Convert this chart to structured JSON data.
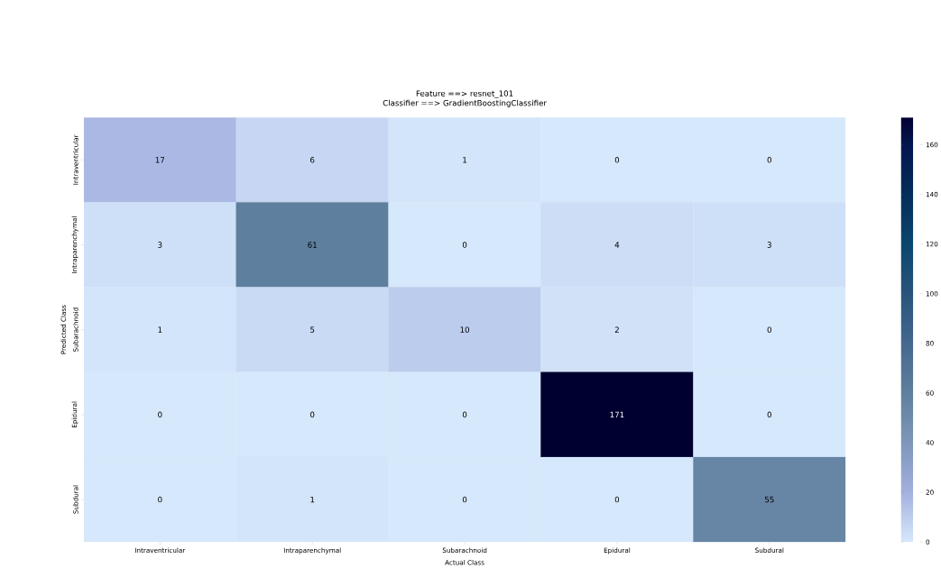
{
  "chart_data": {
    "type": "heatmap",
    "title": "Feature ==> resnet_101",
    "subtitle": "Classifier ==> GradientBoostingClassifier",
    "xlabel": "Actual Class",
    "ylabel": "Predicted Class",
    "categories": [
      "Intraventricular",
      "Intraparenchymal",
      "Subarachnoid",
      "Epidural",
      "Subdural"
    ],
    "y_categories": [
      "Intraventricular",
      "Intraparenchymal",
      "Subarachnoid",
      "Epidural",
      "Subdural"
    ],
    "cells": [
      [
        17,
        6,
        1,
        0,
        0
      ],
      [
        3,
        61,
        0,
        4,
        3
      ],
      [
        1,
        5,
        10,
        2,
        0
      ],
      [
        0,
        0,
        0,
        171,
        0
      ],
      [
        0,
        1,
        0,
        0,
        55
      ]
    ],
    "data_labels": true,
    "clim": [
      0,
      171
    ],
    "cticks": [
      0,
      20,
      40,
      60,
      80,
      100,
      120,
      140,
      160
    ]
  }
}
